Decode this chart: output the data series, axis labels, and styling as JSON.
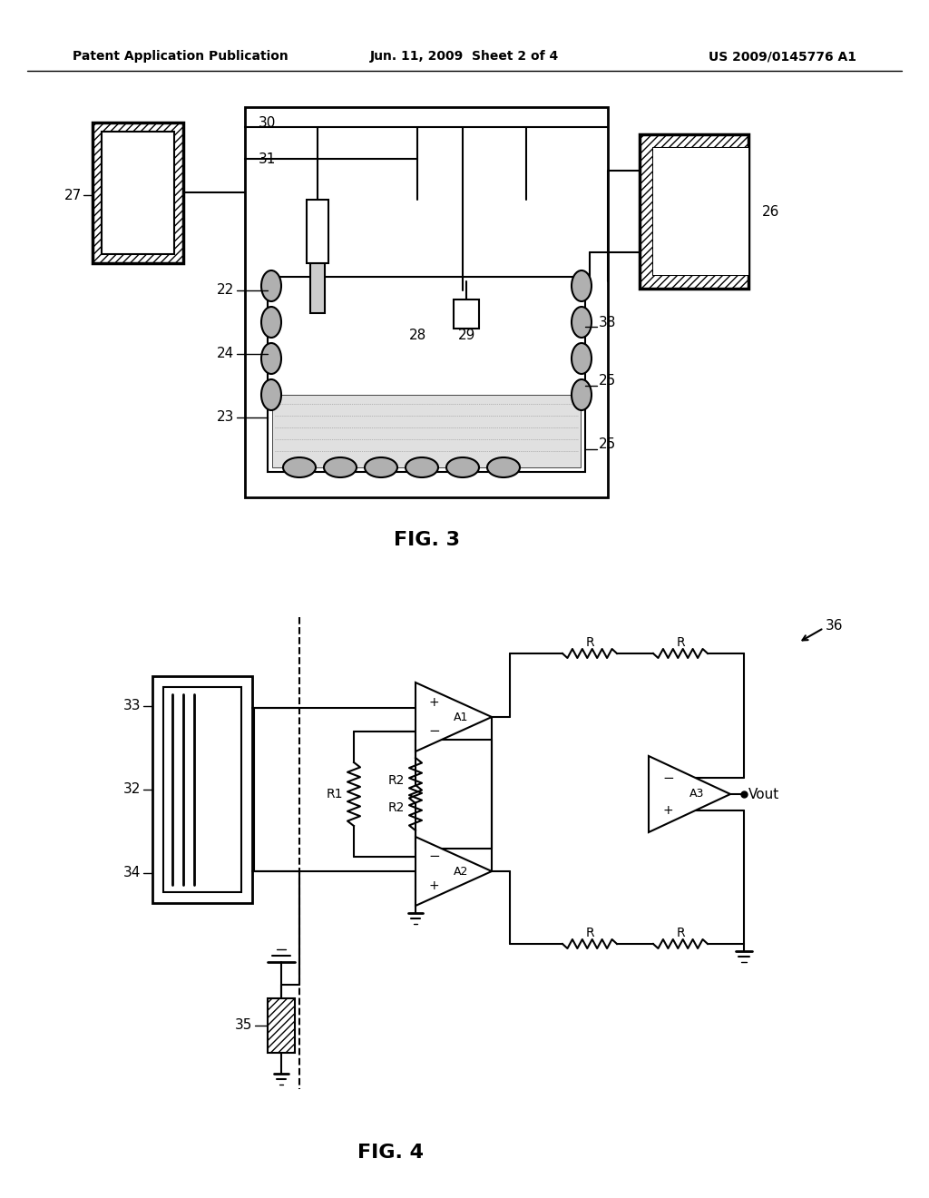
{
  "header_left": "Patent Application Publication",
  "header_center": "Jun. 11, 2009  Sheet 2 of 4",
  "header_right": "US 2009/0145776 A1",
  "fig3_label": "FIG. 3",
  "fig4_label": "FIG. 4",
  "bg_color": "#ffffff",
  "line_color": "#000000"
}
